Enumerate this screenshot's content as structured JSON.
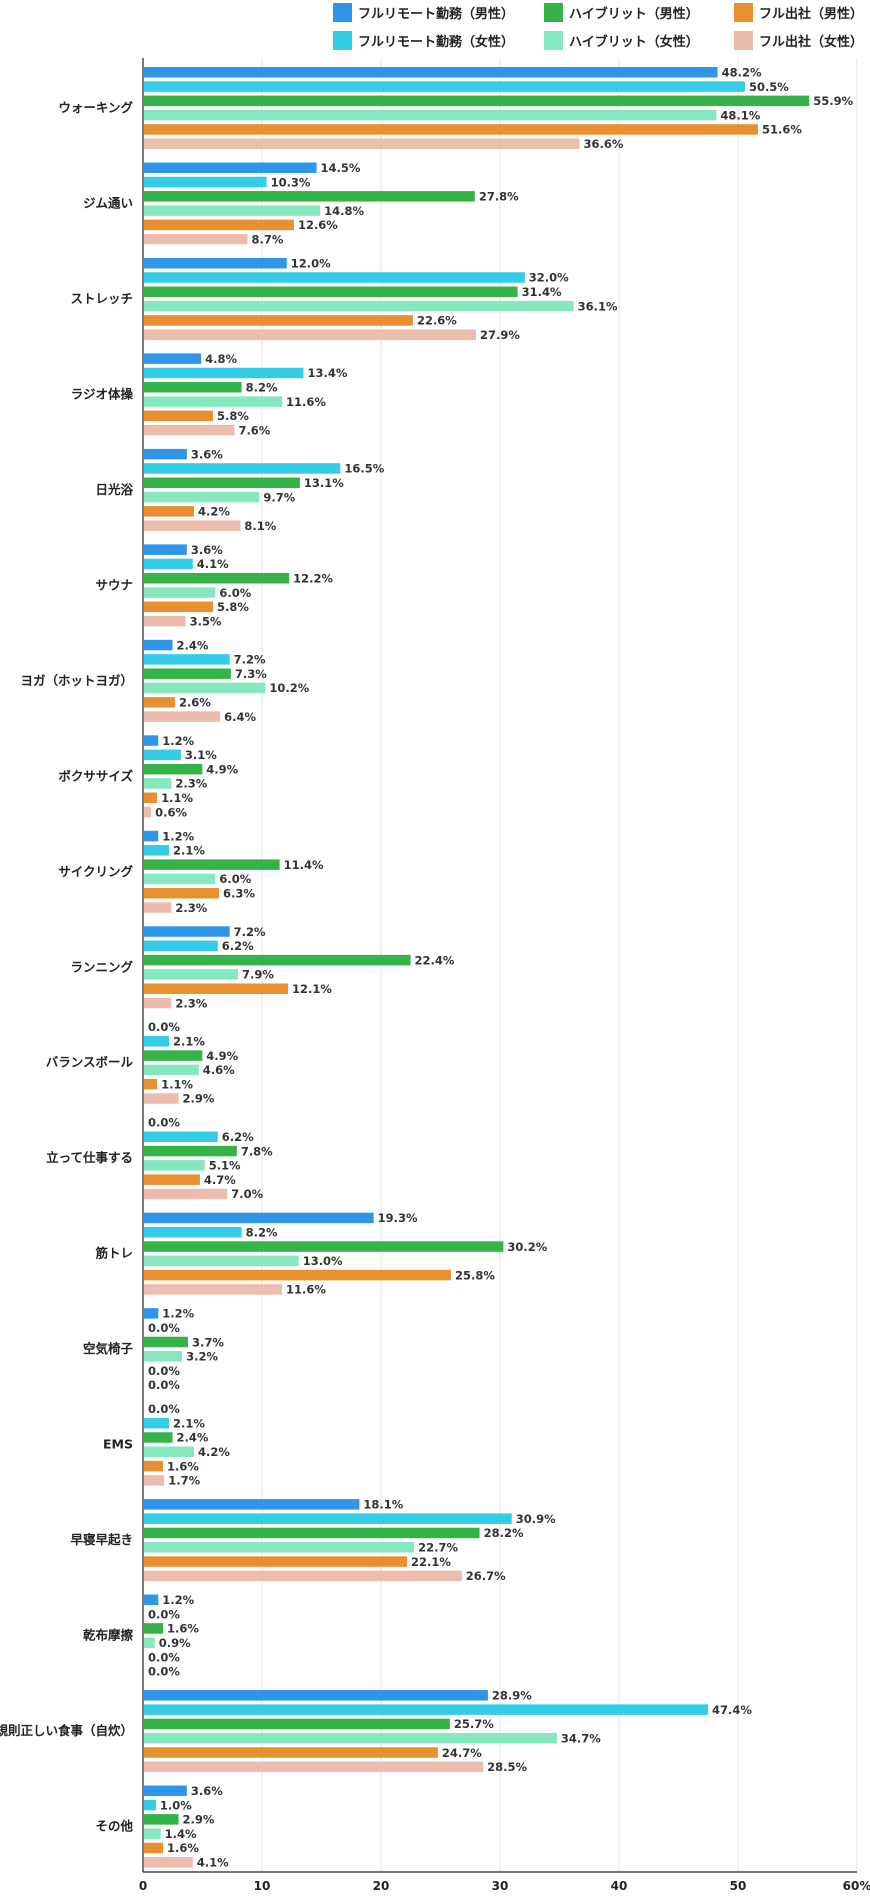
{
  "chart_data": {
    "type": "bar",
    "orientation": "horizontal",
    "categories": [
      "ウォーキング",
      "ジム通い",
      "ストレッチ",
      "ラジオ体操",
      "日光浴",
      "サウナ",
      "ヨガ（ホットヨガ）",
      "ボクササイズ",
      "サイクリング",
      "ランニング",
      "バランスボール",
      "立って仕事する",
      "筋トレ",
      "空気椅子",
      "EMS",
      "早寝早起き",
      "乾布摩擦",
      "規則正しい食事（自炊）",
      "その他"
    ],
    "series": [
      {
        "name": "フルリモート勤務（男性）",
        "color": "#2f95e8",
        "values": [
          48.2,
          14.5,
          12.0,
          4.8,
          3.6,
          3.6,
          2.4,
          1.2,
          1.2,
          7.2,
          0.0,
          0.0,
          19.3,
          1.2,
          0.0,
          18.1,
          1.2,
          28.9,
          3.6
        ]
      },
      {
        "name": "フルリモート勤務（女性）",
        "color": "#34cce6",
        "values": [
          50.5,
          10.3,
          32.0,
          13.4,
          16.5,
          4.1,
          7.2,
          3.1,
          2.1,
          6.2,
          2.1,
          6.2,
          8.2,
          0.0,
          2.1,
          30.9,
          0.0,
          47.4,
          1.0
        ]
      },
      {
        "name": "ハイブリット（男性）",
        "color": "#35b348",
        "values": [
          55.9,
          27.8,
          31.4,
          8.2,
          13.1,
          12.2,
          7.3,
          4.9,
          11.4,
          22.4,
          4.9,
          7.8,
          30.2,
          3.7,
          2.4,
          28.2,
          1.6,
          25.7,
          2.9
        ]
      },
      {
        "name": "ハイブリット（女性）",
        "color": "#85e8bf",
        "values": [
          48.1,
          14.8,
          36.1,
          11.6,
          9.7,
          6.0,
          10.2,
          2.3,
          6.0,
          7.9,
          4.6,
          5.1,
          13.0,
          3.2,
          4.2,
          22.7,
          0.9,
          34.7,
          1.4
        ]
      },
      {
        "name": "フル出社（男性）",
        "color": "#e8902f",
        "values": [
          51.6,
          12.6,
          22.6,
          5.8,
          4.2,
          5.8,
          2.6,
          1.1,
          6.3,
          12.1,
          1.1,
          4.7,
          25.8,
          0.0,
          1.6,
          22.1,
          0.0,
          24.7,
          1.6
        ]
      },
      {
        "name": "フル出社（女性）",
        "color": "#ecbcae",
        "values": [
          36.6,
          8.7,
          27.9,
          7.6,
          8.1,
          3.5,
          6.4,
          0.6,
          2.3,
          2.3,
          2.9,
          7.0,
          11.6,
          0.0,
          1.7,
          26.7,
          0.0,
          28.5,
          4.1
        ]
      }
    ],
    "xlim": [
      0,
      60
    ],
    "xticks": [
      "0",
      "10",
      "20",
      "30",
      "40",
      "50",
      "60%"
    ],
    "value_suffix": "%",
    "grid": true,
    "legend_position": "top-right",
    "title": "",
    "xlabel": "",
    "ylabel": ""
  }
}
